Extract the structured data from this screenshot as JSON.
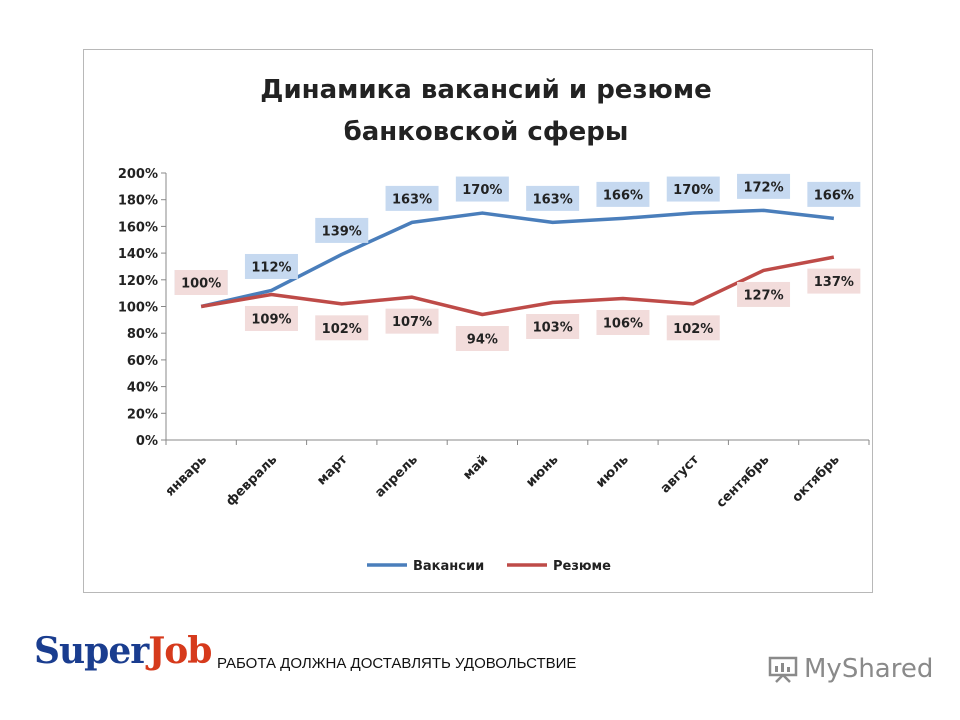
{
  "chart_data": {
    "type": "line",
    "title_lines": [
      "Динамика вакансий и резюме",
      "банковской сферы"
    ],
    "categories": [
      "январь",
      "февраль",
      "март",
      "апрель",
      "май",
      "июнь",
      "июль",
      "август",
      "сентябрь",
      "октябрь"
    ],
    "y_ticks": [
      "0%",
      "20%",
      "40%",
      "60%",
      "80%",
      "100%",
      "120%",
      "140%",
      "160%",
      "180%",
      "200%"
    ],
    "ylim": [
      0,
      200
    ],
    "legend_position": "bottom",
    "grid": false,
    "series": [
      {
        "name": "Вакансии",
        "color": "#4a7ebb",
        "label_bg": "#c6d9f0",
        "values": [
          100,
          112,
          139,
          163,
          170,
          163,
          166,
          170,
          172,
          166
        ],
        "labels": [
          "100%",
          "112%",
          "139%",
          "163%",
          "170%",
          "163%",
          "166%",
          "170%",
          "172%",
          "166%"
        ]
      },
      {
        "name": "Резюме",
        "color": "#be4b48",
        "label_bg": "#f2dcdb",
        "values": [
          100,
          109,
          102,
          107,
          94,
          103,
          106,
          102,
          127,
          137
        ],
        "labels": [
          "100%",
          "109%",
          "102%",
          "107%",
          "94%",
          "103%",
          "106%",
          "102%",
          "127%",
          "137%"
        ]
      }
    ]
  },
  "footer": {
    "logo_part1": "Super",
    "logo_part2": "Job",
    "slogan": "РАБОТА ДОЛЖНА ДОСТАВЛЯТЬ УДОВОЛЬСТВИЕ",
    "watermark": "MyShared"
  }
}
